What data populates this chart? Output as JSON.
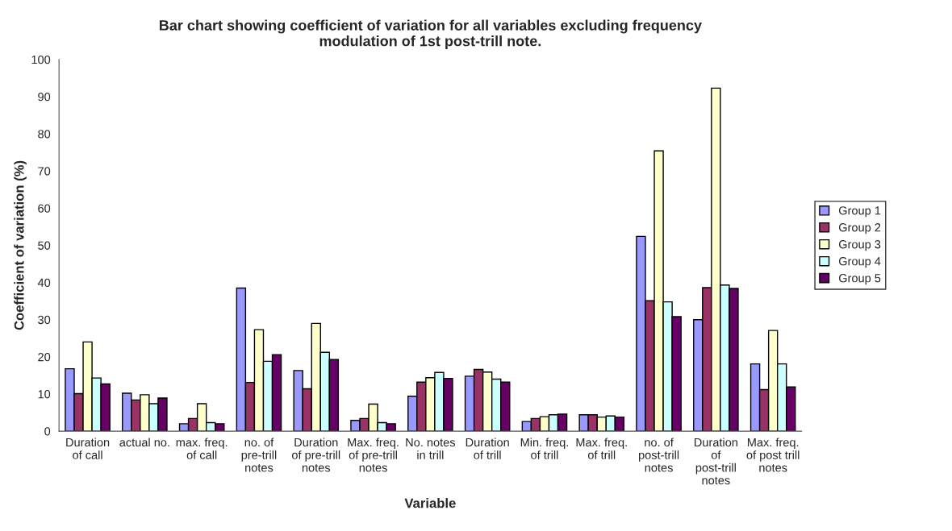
{
  "chart_data": {
    "type": "bar",
    "title": "Bar chart showing coefficient of variation for all variables excluding frequency modulation of 1st post-trill note.",
    "xlabel": "Variable",
    "ylabel": "Coefficient of variation (%)",
    "categories": [
      "Duration of call",
      "actual no.",
      "max. freq. of call",
      "no. of pre-trill notes",
      "Duration of pre-trill notes",
      "Max. freq. of pre-trill notes",
      "No. notes in trill",
      "Duration of trill",
      "Min. freq. of trill",
      "Max. freq. of trill",
      "no. of post-trill notes",
      "Duration of post-trill notes",
      "Max. freq. of post trill notes"
    ],
    "series": [
      {
        "name": "Group 1",
        "color": "#9999ff",
        "values": [
          16.8,
          10.2,
          2.0,
          38.5,
          16.3,
          2.9,
          9.4,
          14.8,
          2.6,
          4.4,
          52.4,
          30.0,
          18.1
        ]
      },
      {
        "name": "Group 2",
        "color": "#993366",
        "values": [
          10.1,
          8.4,
          3.4,
          13.1,
          11.4,
          3.4,
          13.2,
          16.6,
          3.4,
          4.4,
          35.1,
          38.6,
          11.2
        ]
      },
      {
        "name": "Group 3",
        "color": "#ffffcc",
        "values": [
          24.0,
          9.8,
          7.4,
          27.3,
          29.0,
          7.3,
          14.4,
          15.9,
          3.9,
          3.8,
          75.4,
          92.3,
          27.1
        ]
      },
      {
        "name": "Group 4",
        "color": "#ccffff",
        "values": [
          14.3,
          7.4,
          2.3,
          18.8,
          21.2,
          2.3,
          15.8,
          14.0,
          4.4,
          4.1,
          34.8,
          39.3,
          18.1
        ]
      },
      {
        "name": "Group 5",
        "color": "#660066",
        "values": [
          12.7,
          8.9,
          2.0,
          20.6,
          19.3,
          2.0,
          14.2,
          13.2,
          4.6,
          3.8,
          30.8,
          38.4,
          11.9
        ]
      }
    ],
    "ylim": [
      0,
      100
    ],
    "yticks": [
      0,
      10,
      20,
      30,
      40,
      50,
      60,
      70,
      80,
      90,
      100
    ],
    "grid": false,
    "legend": "right"
  }
}
